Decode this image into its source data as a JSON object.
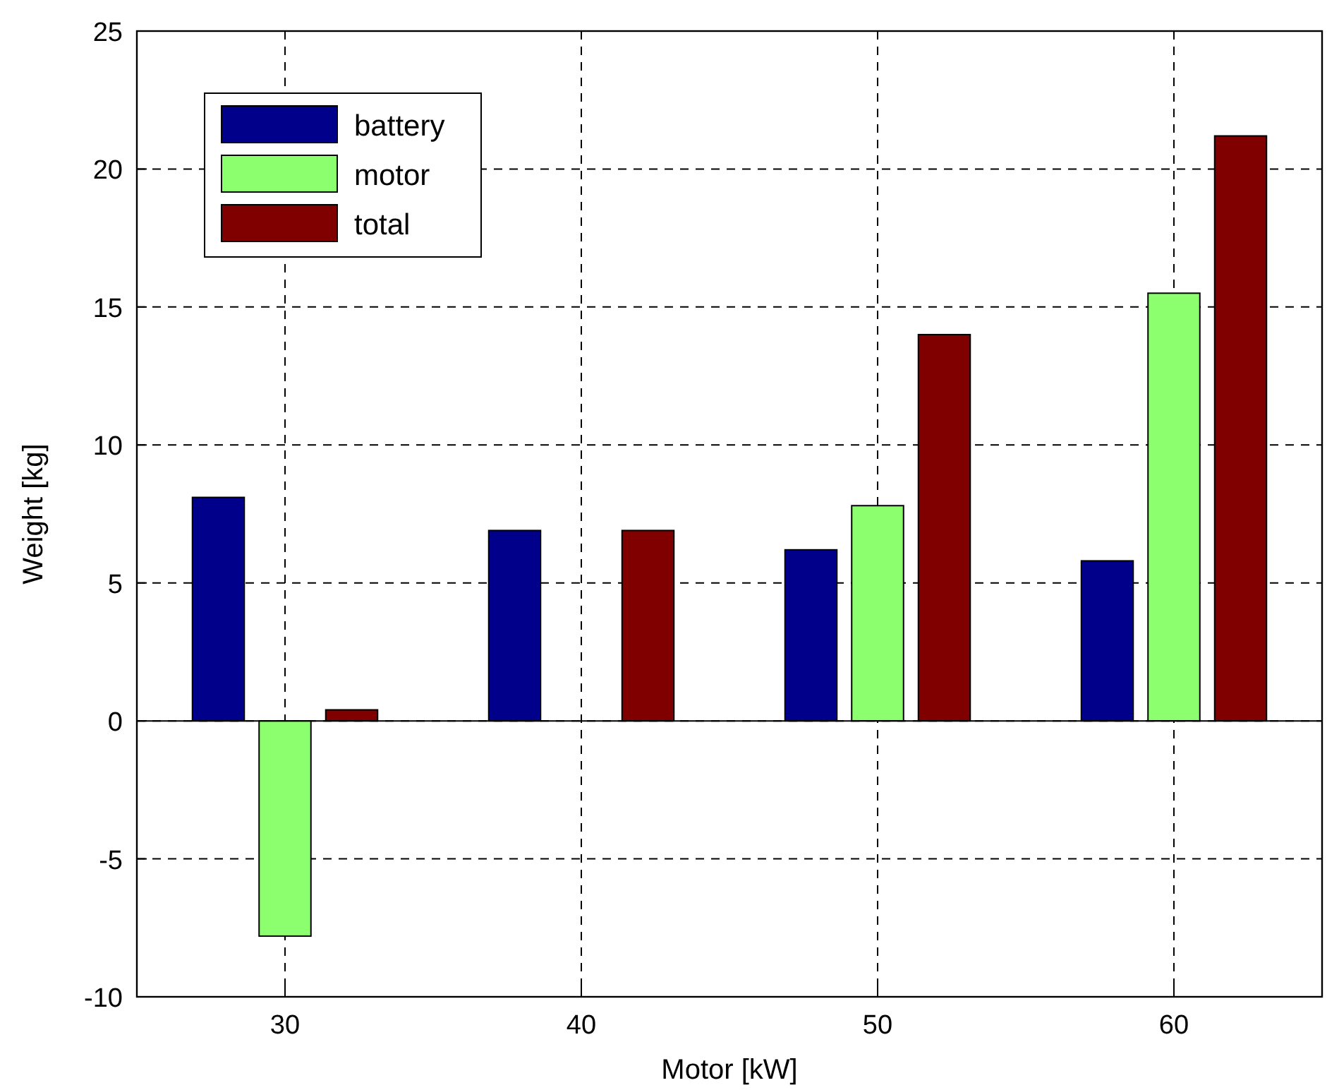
{
  "chart_data": {
    "type": "bar",
    "xlabel": "Motor [kW]",
    "ylabel": "Weight [kg]",
    "x": [
      30,
      40,
      50,
      60
    ],
    "series": [
      {
        "name": "battery",
        "color": "#00008b",
        "values": [
          8.1,
          6.9,
          6.2,
          5.8
        ]
      },
      {
        "name": "motor",
        "color": "#8cff6e",
        "values": [
          -7.8,
          0,
          7.8,
          15.5
        ]
      },
      {
        "name": "total",
        "color": "#800000",
        "values": [
          0.4,
          6.9,
          14,
          21.2
        ]
      }
    ],
    "xlim": [
      25,
      65
    ],
    "xticks": [
      30,
      40,
      50,
      60
    ],
    "ylim": [
      -10,
      25
    ],
    "yticks": [
      -10,
      -5,
      0,
      5,
      10,
      15,
      20,
      25
    ],
    "grid": true,
    "legend": "top left"
  }
}
